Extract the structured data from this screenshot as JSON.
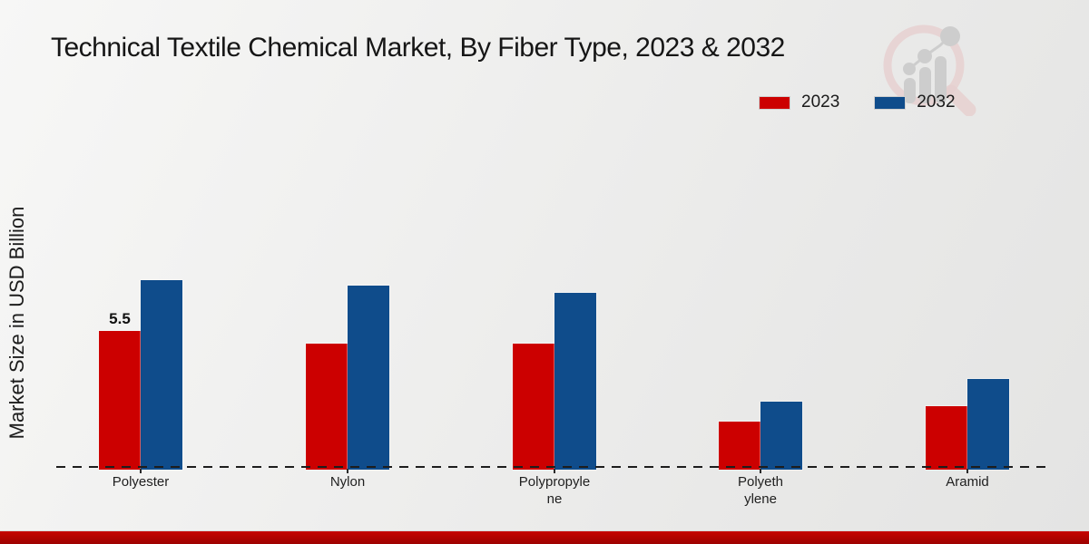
{
  "title": "Technical Textile Chemical Market, By Fiber Type, 2023 & 2032",
  "legend": {
    "items": [
      {
        "label": "2023",
        "color": "#cc0000"
      },
      {
        "label": "2032",
        "color": "#0f4c8b"
      }
    ]
  },
  "watermark": {
    "name": "market-research-magnifier-logo"
  },
  "chart_data": {
    "type": "bar",
    "title": "Technical Textile Chemical Market, By Fiber Type, 2023 & 2032",
    "xlabel": "",
    "ylabel": "Market Size in USD Billion",
    "ylim": [
      0,
      13
    ],
    "grid": false,
    "legend_position": "top-right",
    "baseline_style": "dashed",
    "categories": [
      "Polyester",
      "Nylon",
      "Polypropylene",
      "Polyethylene",
      "Aramid"
    ],
    "category_display_labels": [
      "Polyester",
      "Nylon",
      "Polypropyle\nne",
      "Polyeth\nylene",
      "Aramid"
    ],
    "series": [
      {
        "name": "2023",
        "color": "#cc0000",
        "values": [
          5.5,
          5.0,
          5.0,
          1.9,
          2.5
        ]
      },
      {
        "name": "2032",
        "color": "#0f4c8b",
        "values": [
          7.5,
          7.3,
          7.0,
          2.7,
          3.6
        ]
      }
    ],
    "data_labels": [
      {
        "series_index": 0,
        "category_index": 0,
        "text": "5.5"
      }
    ]
  },
  "colors": {
    "background_start": "#f7f7f6",
    "background_end": "#e4e4e3",
    "bottom_band": "#c60400",
    "axis_line": "#1d1d1d",
    "title_text": "#161616"
  }
}
